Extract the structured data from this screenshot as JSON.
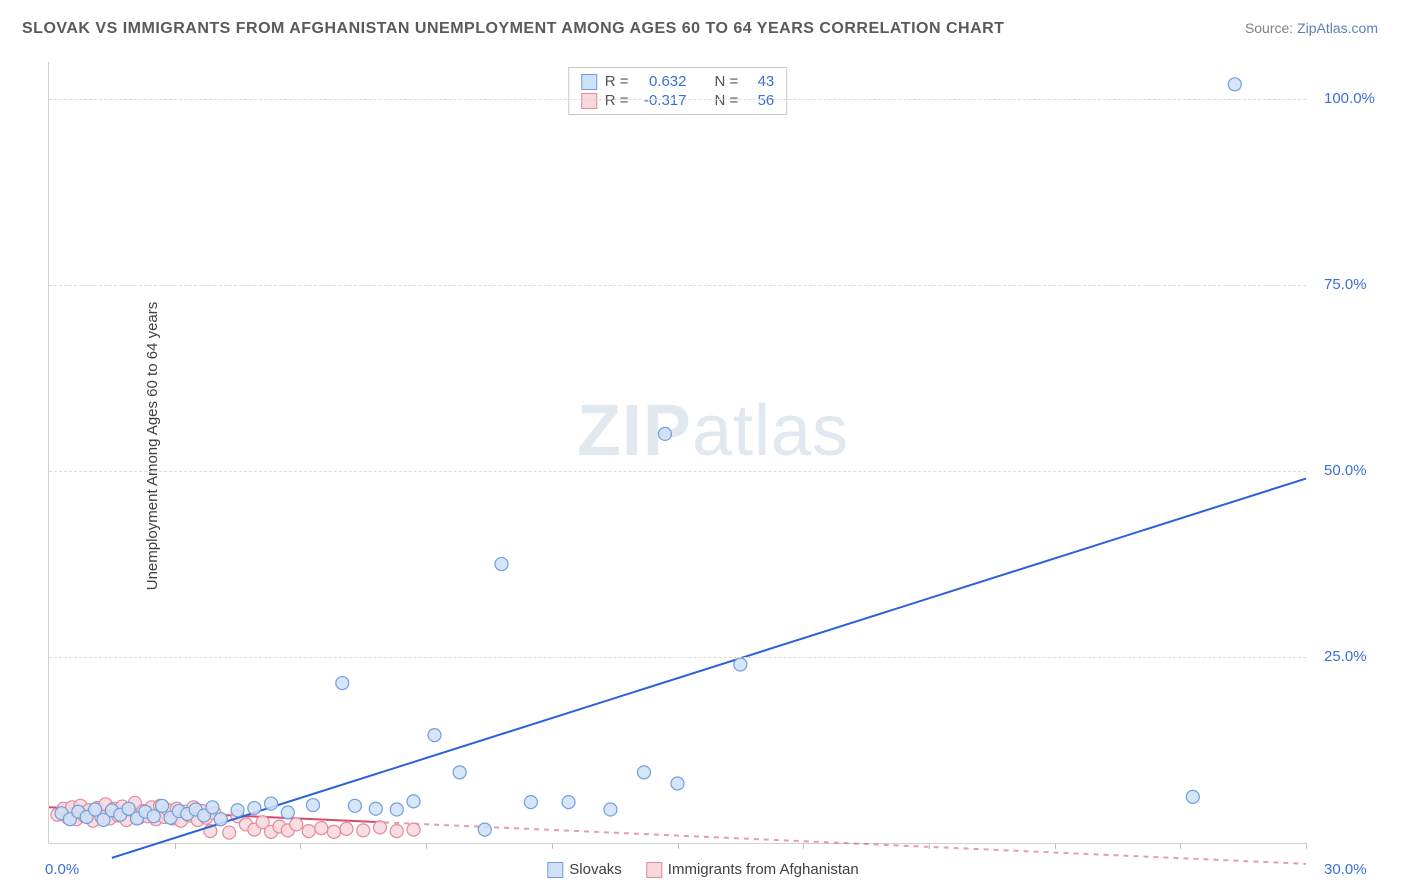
{
  "title": "SLOVAK VS IMMIGRANTS FROM AFGHANISTAN UNEMPLOYMENT AMONG AGES 60 TO 64 YEARS CORRELATION CHART",
  "source_prefix": "Source: ",
  "source_link": "ZipAtlas.com",
  "ylabel": "Unemployment Among Ages 60 to 64 years",
  "watermark": {
    "bold": "ZIP",
    "rest": "atlas"
  },
  "chart": {
    "type": "scatter",
    "xlim": [
      0,
      30
    ],
    "ylim": [
      0,
      105
    ],
    "x_min_label": "0.0%",
    "x_max_label": "30.0%",
    "y_ticks": [
      25,
      50,
      75,
      100
    ],
    "y_tick_labels": [
      "25.0%",
      "50.0%",
      "75.0%",
      "100.0%"
    ],
    "x_minor_ticks": [
      3,
      6,
      9,
      12,
      15,
      18,
      21,
      24,
      27,
      30
    ],
    "background_color": "#ffffff",
    "grid_color": "#dcdcdc",
    "axis_color": "#d0d0d0",
    "marker_radius": 6.5,
    "marker_stroke_width": 1.2,
    "trend_line_width": 2,
    "series": [
      {
        "name": "Slovaks",
        "marker_fill": "#cfe1f7",
        "marker_stroke": "#6f9fde",
        "line_color": "#2b62d9",
        "line_dash": "none",
        "r": "0.632",
        "n": "43",
        "trend": {
          "x1": 1.5,
          "y1": -2,
          "x2": 30,
          "y2": 49
        },
        "points": [
          [
            0.3,
            4
          ],
          [
            0.5,
            3.2
          ],
          [
            0.7,
            4.2
          ],
          [
            0.9,
            3.5
          ],
          [
            1.1,
            4.5
          ],
          [
            1.3,
            3.1
          ],
          [
            1.5,
            4.4
          ],
          [
            1.7,
            3.8
          ],
          [
            1.9,
            4.6
          ],
          [
            2.1,
            3.3
          ],
          [
            2.3,
            4.2
          ],
          [
            2.5,
            3.6
          ],
          [
            2.7,
            5.0
          ],
          [
            2.9,
            3.4
          ],
          [
            3.1,
            4.3
          ],
          [
            3.3,
            3.9
          ],
          [
            3.5,
            4.5
          ],
          [
            3.7,
            3.7
          ],
          [
            3.9,
            4.8
          ],
          [
            4.1,
            3.2
          ],
          [
            4.5,
            4.4
          ],
          [
            4.9,
            4.7
          ],
          [
            5.3,
            5.3
          ],
          [
            5.7,
            4.1
          ],
          [
            6.3,
            5.1
          ],
          [
            7.0,
            21.5
          ],
          [
            7.3,
            5.0
          ],
          [
            7.8,
            4.6
          ],
          [
            8.3,
            4.5
          ],
          [
            8.7,
            5.6
          ],
          [
            9.2,
            14.5
          ],
          [
            9.8,
            9.5
          ],
          [
            10.4,
            1.8
          ],
          [
            10.8,
            37.5
          ],
          [
            11.5,
            5.5
          ],
          [
            12.4,
            5.5
          ],
          [
            13.4,
            4.5
          ],
          [
            14.2,
            9.5
          ],
          [
            14.7,
            55
          ],
          [
            15.0,
            8.0
          ],
          [
            16.5,
            24
          ],
          [
            27.3,
            6.2
          ],
          [
            28.3,
            102
          ]
        ]
      },
      {
        "name": "Immigrants from Afghanistan",
        "marker_fill": "#f7d8dd",
        "marker_stroke": "#e48a9a",
        "line_color": "#d94a6a",
        "line_dash": "5,5",
        "line_dash_after_x": 8,
        "r": "-0.317",
        "n": "56",
        "trend": {
          "x1": 0,
          "y1": 4.8,
          "x2": 30,
          "y2": -2.8
        },
        "points": [
          [
            0.2,
            3.8
          ],
          [
            0.35,
            4.6
          ],
          [
            0.45,
            3.4
          ],
          [
            0.55,
            4.8
          ],
          [
            0.65,
            3.2
          ],
          [
            0.75,
            5.0
          ],
          [
            0.85,
            3.6
          ],
          [
            0.95,
            4.4
          ],
          [
            1.05,
            3.0
          ],
          [
            1.15,
            4.7
          ],
          [
            1.25,
            3.5
          ],
          [
            1.35,
            5.2
          ],
          [
            1.45,
            3.3
          ],
          [
            1.55,
            4.6
          ],
          [
            1.65,
            3.7
          ],
          [
            1.75,
            4.9
          ],
          [
            1.85,
            3.1
          ],
          [
            1.95,
            4.5
          ],
          [
            2.05,
            5.4
          ],
          [
            2.15,
            3.4
          ],
          [
            2.25,
            4.3
          ],
          [
            2.35,
            3.6
          ],
          [
            2.45,
            4.8
          ],
          [
            2.55,
            3.2
          ],
          [
            2.65,
            5.0
          ],
          [
            2.75,
            3.5
          ],
          [
            2.85,
            4.4
          ],
          [
            2.95,
            3.3
          ],
          [
            3.05,
            4.6
          ],
          [
            3.15,
            3.0
          ],
          [
            3.25,
            4.2
          ],
          [
            3.35,
            3.7
          ],
          [
            3.45,
            4.8
          ],
          [
            3.55,
            3.1
          ],
          [
            3.65,
            4.3
          ],
          [
            3.75,
            3.4
          ],
          [
            3.85,
            1.6
          ],
          [
            3.95,
            4.0
          ],
          [
            4.1,
            3.2
          ],
          [
            4.3,
            1.4
          ],
          [
            4.5,
            3.6
          ],
          [
            4.7,
            2.5
          ],
          [
            4.9,
            1.8
          ],
          [
            5.1,
            2.8
          ],
          [
            5.3,
            1.5
          ],
          [
            5.5,
            2.2
          ],
          [
            5.7,
            1.7
          ],
          [
            5.9,
            2.5
          ],
          [
            6.2,
            1.6
          ],
          [
            6.5,
            2.0
          ],
          [
            6.8,
            1.5
          ],
          [
            7.1,
            1.9
          ],
          [
            7.5,
            1.7
          ],
          [
            7.9,
            2.1
          ],
          [
            8.3,
            1.6
          ],
          [
            8.7,
            1.8
          ]
        ]
      }
    ]
  },
  "legend": {
    "r_label": "R =",
    "n_label": "N ="
  }
}
